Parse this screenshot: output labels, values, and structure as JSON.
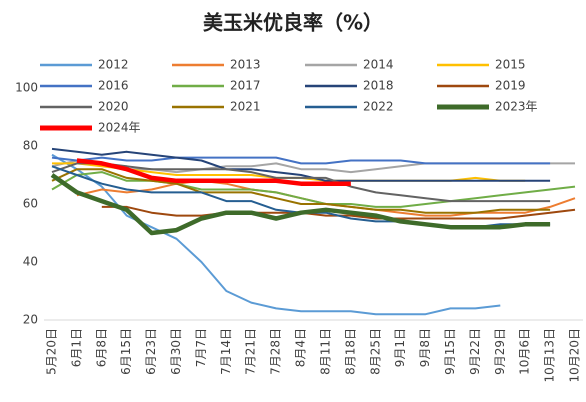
{
  "chart_data": {
    "type": "line",
    "title": "美玉米优良率（%）",
    "categories": [
      "5月20日",
      "6月1日",
      "6月8日",
      "6月15日",
      "6月23日",
      "6月30日",
      "7月7日",
      "7月14日",
      "7月21日",
      "7月28日",
      "8月4日",
      "8月11日",
      "8月18日",
      "8月25日",
      "9月1日",
      "9月8日",
      "9月15日",
      "9月22日",
      "9月29日",
      "10月6日",
      "10月13日",
      "10月20日"
    ],
    "ylim": [
      20,
      100
    ],
    "yticks": [
      20,
      40,
      60,
      80,
      100
    ],
    "grid": false,
    "series": [
      {
        "name": "2012",
        "color": "#5b9bd5",
        "values": [
          77,
          72,
          66,
          56,
          52,
          48,
          40,
          30,
          26,
          24,
          23,
          23,
          23,
          22,
          22,
          22,
          24,
          24,
          25,
          null,
          null,
          null
        ]
      },
      {
        "name": "2013",
        "color": "#ed7d31",
        "values": [
          null,
          63,
          65,
          64,
          65,
          67,
          68,
          67,
          65,
          64,
          62,
          60,
          59,
          58,
          57,
          56,
          56,
          57,
          57,
          57,
          59,
          62
        ]
      },
      {
        "name": "2014",
        "color": "#a5a5a5",
        "values": [
          73,
          75,
          74,
          72,
          72,
          71,
          72,
          73,
          73,
          74,
          72,
          72,
          71,
          72,
          73,
          74,
          74,
          74,
          74,
          74,
          74,
          74
        ]
      },
      {
        "name": "2015",
        "color": "#ffc000",
        "values": [
          74,
          74,
          73,
          72,
          71,
          70,
          70,
          70,
          70,
          69,
          69,
          68,
          68,
          68,
          68,
          68,
          68,
          69,
          68,
          68,
          null,
          null
        ]
      },
      {
        "name": "2016",
        "color": "#4472c4",
        "values": [
          76,
          75,
          76,
          75,
          75,
          76,
          76,
          76,
          76,
          76,
          74,
          74,
          75,
          75,
          75,
          74,
          74,
          74,
          74,
          74,
          74,
          null
        ]
      },
      {
        "name": "2017",
        "color": "#70ad47",
        "values": [
          65,
          70,
          71,
          68,
          68,
          67,
          65,
          65,
          65,
          64,
          62,
          60,
          60,
          59,
          59,
          60,
          61,
          62,
          63,
          64,
          65,
          66
        ]
      },
      {
        "name": "2018",
        "color": "#264478",
        "values": [
          79,
          78,
          77,
          78,
          77,
          76,
          75,
          72,
          72,
          71,
          70,
          68,
          68,
          68,
          68,
          68,
          68,
          68,
          68,
          68,
          68,
          null
        ]
      },
      {
        "name": "2019",
        "color": "#9e480e",
        "values": [
          null,
          null,
          59,
          59,
          57,
          56,
          56,
          57,
          57,
          57,
          57,
          56,
          56,
          55,
          55,
          55,
          55,
          55,
          55,
          56,
          57,
          58
        ]
      },
      {
        "name": "2020",
        "color": "#636363",
        "values": [
          71,
          74,
          74,
          73,
          72,
          72,
          72,
          72,
          71,
          69,
          69,
          69,
          66,
          64,
          63,
          62,
          61,
          61,
          61,
          61,
          61,
          null
        ]
      },
      {
        "name": "2021",
        "color": "#997300",
        "values": [
          68,
          72,
          72,
          69,
          68,
          67,
          64,
          64,
          64,
          62,
          60,
          60,
          59,
          58,
          58,
          57,
          57,
          57,
          58,
          58,
          58,
          null
        ]
      },
      {
        "name": "2022",
        "color": "#255e91",
        "values": [
          73,
          70,
          67,
          65,
          64,
          64,
          64,
          61,
          61,
          58,
          57,
          57,
          55,
          54,
          54,
          53,
          52,
          52,
          53,
          53,
          53,
          null
        ]
      },
      {
        "name": "2023年",
        "color": "#3e6b2a",
        "values": [
          70,
          64,
          61,
          58,
          50,
          51,
          55,
          57,
          57,
          55,
          57,
          58,
          57,
          56,
          54,
          53,
          52,
          52,
          52,
          53,
          53,
          null
        ]
      },
      {
        "name": "2024年",
        "color": "#ff0000",
        "values": [
          null,
          75,
          74,
          72,
          69,
          68,
          68,
          68,
          68,
          68,
          67,
          67,
          67,
          null,
          null,
          null,
          null,
          null,
          null,
          null,
          null,
          null
        ]
      }
    ]
  }
}
